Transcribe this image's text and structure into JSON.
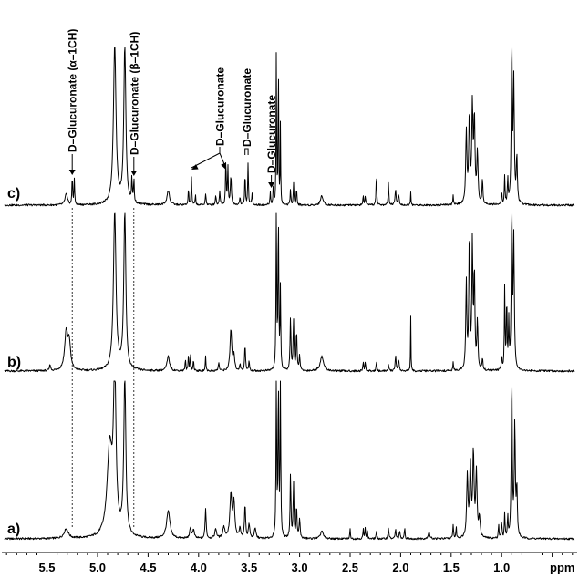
{
  "chart_data": {
    "type": "line",
    "xlabel": "ppm",
    "xlim": [
      5.92,
      0.28
    ],
    "x_reversed": true,
    "tick_labels": [
      "5.5",
      "5.0",
      "4.5",
      "4.0",
      "3.5",
      "3.0",
      "2.5",
      "2.0",
      "1.5",
      "1.0"
    ],
    "guide_lines_ppm": [
      5.25,
      4.64
    ],
    "series": [
      {
        "name": "a)",
        "peaks": [
          [
            5.31,
            0.06,
            0.025
          ],
          [
            4.83,
            1.0,
            0.015
          ],
          [
            4.88,
            0.55,
            0.03
          ],
          [
            4.73,
            1.0,
            0.012
          ],
          [
            4.3,
            0.17,
            0.02
          ],
          [
            4.08,
            0.06,
            0.01
          ],
          [
            4.05,
            0.05,
            0.01
          ],
          [
            3.93,
            0.19,
            0.006
          ],
          [
            3.83,
            0.06,
            0.01
          ],
          [
            3.75,
            0.07,
            0.012
          ],
          [
            3.68,
            0.27,
            0.012
          ],
          [
            3.65,
            0.22,
            0.01
          ],
          [
            3.59,
            0.06,
            0.01
          ],
          [
            3.54,
            0.22,
            0.006
          ],
          [
            3.5,
            0.09,
            0.008
          ],
          [
            3.44,
            0.06,
            0.01
          ],
          [
            3.23,
            1.0,
            0.004
          ],
          [
            3.21,
            1.0,
            0.004
          ],
          [
            3.19,
            1.0,
            0.004
          ],
          [
            3.09,
            0.4,
            0.005
          ],
          [
            3.06,
            0.34,
            0.005
          ],
          [
            3.03,
            0.2,
            0.005
          ],
          [
            3.0,
            0.12,
            0.006
          ],
          [
            2.78,
            0.05,
            0.015
          ],
          [
            2.5,
            0.06,
            0.004
          ],
          [
            2.37,
            0.06,
            0.004
          ],
          [
            2.35,
            0.07,
            0.004
          ],
          [
            2.33,
            0.05,
            0.004
          ],
          [
            2.24,
            0.05,
            0.004
          ],
          [
            2.12,
            0.07,
            0.005
          ],
          [
            2.05,
            0.06,
            0.005
          ],
          [
            2.01,
            0.05,
            0.005
          ],
          [
            1.96,
            0.07,
            0.004
          ],
          [
            1.72,
            0.04,
            0.01
          ],
          [
            1.48,
            0.09,
            0.004
          ],
          [
            1.45,
            0.07,
            0.004
          ],
          [
            1.34,
            0.38,
            0.008
          ],
          [
            1.31,
            0.45,
            0.008
          ],
          [
            1.28,
            0.52,
            0.008
          ],
          [
            1.25,
            0.4,
            0.008
          ],
          [
            1.22,
            0.12,
            0.008
          ],
          [
            1.03,
            0.09,
            0.004
          ],
          [
            1.0,
            0.11,
            0.004
          ],
          [
            0.97,
            0.16,
            0.004
          ],
          [
            0.94,
            0.13,
            0.004
          ],
          [
            0.9,
            1.0,
            0.006
          ],
          [
            0.87,
            0.7,
            0.006
          ],
          [
            0.85,
            0.3,
            0.006
          ]
        ]
      },
      {
        "name": "b)",
        "peaks": [
          [
            5.47,
            0.04,
            0.006
          ],
          [
            5.31,
            0.24,
            0.018
          ],
          [
            5.28,
            0.16,
            0.015
          ],
          [
            4.83,
            1.0,
            0.015
          ],
          [
            4.73,
            1.0,
            0.012
          ],
          [
            4.3,
            0.09,
            0.015
          ],
          [
            4.13,
            0.07,
            0.004
          ],
          [
            4.1,
            0.1,
            0.004
          ],
          [
            4.08,
            0.1,
            0.004
          ],
          [
            4.05,
            0.07,
            0.004
          ],
          [
            3.93,
            0.09,
            0.004
          ],
          [
            3.8,
            0.05,
            0.006
          ],
          [
            3.68,
            0.26,
            0.01
          ],
          [
            3.65,
            0.1,
            0.008
          ],
          [
            3.59,
            0.04,
            0.006
          ],
          [
            3.54,
            0.17,
            0.005
          ],
          [
            3.5,
            0.06,
            0.005
          ],
          [
            3.23,
            1.0,
            0.004
          ],
          [
            3.21,
            1.0,
            0.004
          ],
          [
            3.19,
            0.5,
            0.004
          ],
          [
            3.09,
            0.33,
            0.005
          ],
          [
            3.06,
            0.32,
            0.005
          ],
          [
            3.03,
            0.25,
            0.005
          ],
          [
            3.0,
            0.1,
            0.005
          ],
          [
            2.78,
            0.09,
            0.02
          ],
          [
            2.37,
            0.06,
            0.004
          ],
          [
            2.35,
            0.06,
            0.004
          ],
          [
            2.24,
            0.06,
            0.004
          ],
          [
            2.12,
            0.04,
            0.004
          ],
          [
            2.05,
            0.09,
            0.006
          ],
          [
            2.02,
            0.07,
            0.006
          ],
          [
            1.9,
            0.34,
            0.0025
          ],
          [
            1.48,
            0.05,
            0.004
          ],
          [
            1.35,
            0.55,
            0.006
          ],
          [
            1.32,
            0.85,
            0.006
          ],
          [
            1.29,
            0.78,
            0.006
          ],
          [
            1.27,
            0.6,
            0.006
          ],
          [
            1.24,
            0.3,
            0.006
          ],
          [
            1.19,
            0.07,
            0.006
          ],
          [
            1.0,
            0.09,
            0.004
          ],
          [
            0.97,
            0.52,
            0.004
          ],
          [
            0.95,
            0.45,
            0.004
          ],
          [
            0.93,
            0.3,
            0.004
          ],
          [
            0.9,
            1.0,
            0.006
          ],
          [
            0.88,
            0.8,
            0.006
          ]
        ]
      },
      {
        "name": "c)",
        "peaks": [
          [
            5.31,
            0.07,
            0.014
          ],
          [
            5.25,
            0.18,
            0.004
          ],
          [
            5.23,
            0.16,
            0.004
          ],
          [
            4.83,
            1.0,
            0.015
          ],
          [
            4.73,
            1.0,
            0.012
          ],
          [
            4.66,
            0.16,
            0.004
          ],
          [
            4.64,
            0.15,
            0.004
          ],
          [
            4.3,
            0.09,
            0.015
          ],
          [
            4.1,
            0.1,
            0.004
          ],
          [
            4.07,
            0.17,
            0.004
          ],
          [
            4.03,
            0.06,
            0.004
          ],
          [
            3.93,
            0.07,
            0.005
          ],
          [
            3.83,
            0.06,
            0.005
          ],
          [
            3.79,
            0.09,
            0.005
          ],
          [
            3.73,
            0.3,
            0.004
          ],
          [
            3.71,
            0.25,
            0.004
          ],
          [
            3.68,
            0.18,
            0.006
          ],
          [
            3.59,
            0.05,
            0.005
          ],
          [
            3.54,
            0.2,
            0.004
          ],
          [
            3.51,
            0.26,
            0.004
          ],
          [
            3.47,
            0.07,
            0.005
          ],
          [
            3.29,
            0.08,
            0.004
          ],
          [
            3.26,
            0.16,
            0.003
          ],
          [
            3.23,
            1.0,
            0.003
          ],
          [
            3.21,
            1.0,
            0.003
          ],
          [
            3.19,
            0.5,
            0.003
          ],
          [
            3.09,
            0.1,
            0.004
          ],
          [
            3.06,
            0.14,
            0.004
          ],
          [
            3.03,
            0.11,
            0.004
          ],
          [
            2.78,
            0.06,
            0.015
          ],
          [
            2.37,
            0.06,
            0.004
          ],
          [
            2.35,
            0.06,
            0.004
          ],
          [
            2.24,
            0.2,
            0.004
          ],
          [
            2.12,
            0.15,
            0.004
          ],
          [
            2.05,
            0.1,
            0.006
          ],
          [
            2.02,
            0.07,
            0.006
          ],
          [
            1.9,
            0.08,
            0.003
          ],
          [
            1.48,
            0.06,
            0.004
          ],
          [
            1.35,
            0.45,
            0.007
          ],
          [
            1.32,
            0.55,
            0.007
          ],
          [
            1.29,
            0.6,
            0.007
          ],
          [
            1.27,
            0.52,
            0.007
          ],
          [
            1.24,
            0.32,
            0.007
          ],
          [
            1.19,
            0.16,
            0.005
          ],
          [
            1.0,
            0.08,
            0.004
          ],
          [
            0.97,
            0.18,
            0.004
          ],
          [
            0.94,
            0.16,
            0.004
          ],
          [
            0.9,
            1.0,
            0.006
          ],
          [
            0.88,
            0.75,
            0.006
          ],
          [
            0.85,
            0.3,
            0.006
          ]
        ]
      }
    ],
    "annotations": [
      {
        "id": "alpha",
        "text": "D–Glucuronate (α–1CH)",
        "series": "c)",
        "targets_ppm": [
          5.25
        ]
      },
      {
        "id": "beta",
        "text": "D–Glucuronate (β–1CH)",
        "series": "c)",
        "targets_ppm": [
          4.64
        ]
      },
      {
        "id": "g1",
        "text": "D–Glucuronate",
        "series": "c)",
        "targets_ppm": [
          4.07,
          3.73
        ]
      },
      {
        "id": "g2",
        "text": "D–Glucuronate",
        "series": "c)",
        "targets_ppm": [
          3.54,
          3.51
        ]
      },
      {
        "id": "g3",
        "text": "D–Glucuronate",
        "series": "c)",
        "targets_ppm": [
          3.28
        ]
      }
    ]
  }
}
